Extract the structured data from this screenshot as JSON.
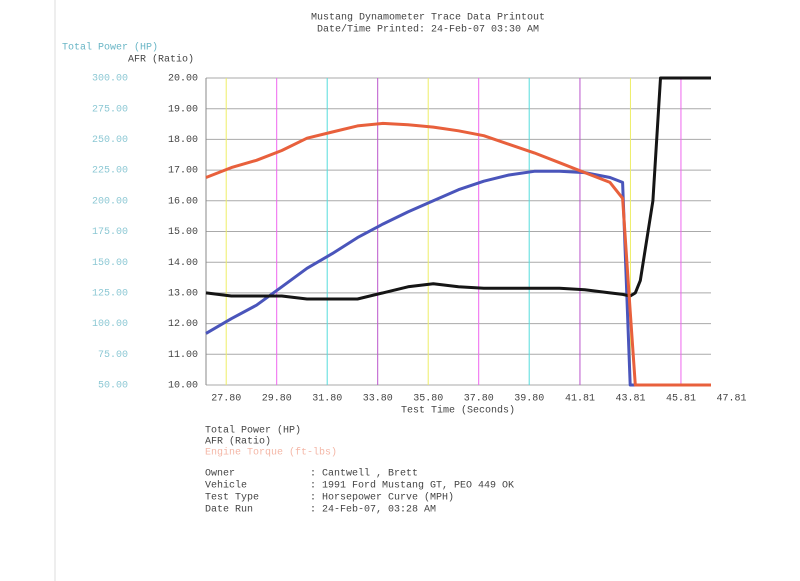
{
  "chart_data": {
    "type": "line",
    "title": "Mustang Dynamometer Trace Data Printout",
    "subtitle": "Date/Time Printed: 24-Feb-07 03:30 AM",
    "y_label": "Total Power (HP)",
    "y2_label": "AFR (Ratio)",
    "x_label": "Test Time (Seconds)",
    "x": [
      27,
      28,
      29,
      30,
      31,
      32,
      33,
      34,
      35,
      36,
      37,
      38,
      39,
      40,
      41,
      42,
      43,
      43.5,
      43.8,
      44,
      44.2,
      44.7,
      45,
      46,
      47
    ],
    "series": [
      {
        "name": "Total Power (HP)",
        "color": "#4a55bb",
        "values": [
          92,
          104,
          115,
          130,
          145,
          157,
          170,
          181,
          191,
          200,
          209,
          216,
          221,
          224,
          224,
          223,
          219,
          215,
          50,
          50,
          50,
          50,
          50,
          50,
          50
        ]
      },
      {
        "name": "AFR (Ratio)",
        "color": "#151515",
        "axis": "y2",
        "values": [
          13.0,
          12.9,
          12.9,
          12.9,
          12.8,
          12.8,
          12.8,
          13.0,
          13.2,
          13.3,
          13.2,
          13.15,
          13.15,
          13.15,
          13.15,
          13.1,
          13.0,
          12.95,
          12.9,
          13.0,
          13.4,
          16.0,
          20.0,
          20.0,
          20.0
        ]
      },
      {
        "name": "Engine Torque (ft-lbs)",
        "color": "#e8603c",
        "values": [
          219,
          227,
          233,
          241,
          251,
          256,
          261,
          263,
          262,
          260,
          257,
          253,
          246,
          239,
          231,
          223,
          215,
          202,
          110,
          50,
          50,
          50,
          50,
          50,
          50
        ]
      }
    ],
    "xlim": [
      27,
      47
    ],
    "xticks": [
      {
        "value": 27.8,
        "label": "27.80"
      },
      {
        "value": 29.8,
        "label": "29.80"
      },
      {
        "value": 31.8,
        "label": "31.80"
      },
      {
        "value": 33.8,
        "label": "33.80"
      },
      {
        "value": 35.8,
        "label": "35.80"
      },
      {
        "value": 37.8,
        "label": "37.80"
      },
      {
        "value": 39.8,
        "label": "39.80"
      },
      {
        "value": 41.81,
        "label": "41.81"
      },
      {
        "value": 43.81,
        "label": "43.81"
      },
      {
        "value": 45.81,
        "label": "45.81"
      },
      {
        "value": 47.81,
        "label": "47.81"
      }
    ],
    "ylim": [
      50,
      300
    ],
    "yticks": [
      {
        "value": 50,
        "label": "50.00"
      },
      {
        "value": 75,
        "label": "75.00"
      },
      {
        "value": 100,
        "label": "100.00"
      },
      {
        "value": 125,
        "label": "125.00"
      },
      {
        "value": 150,
        "label": "150.00"
      },
      {
        "value": 175,
        "label": "175.00"
      },
      {
        "value": 200,
        "label": "200.00"
      },
      {
        "value": 225,
        "label": "225.00"
      },
      {
        "value": 250,
        "label": "250.00"
      },
      {
        "value": 275,
        "label": "275.00"
      },
      {
        "value": 300,
        "label": "300.00"
      }
    ],
    "y2lim": [
      10,
      20
    ],
    "y2ticks": [
      {
        "value": 10,
        "label": "10.00"
      },
      {
        "value": 11,
        "label": "11.00"
      },
      {
        "value": 12,
        "label": "12.00"
      },
      {
        "value": 13,
        "label": "13.00"
      },
      {
        "value": 14,
        "label": "14.00"
      },
      {
        "value": 15,
        "label": "15.00"
      },
      {
        "value": 16,
        "label": "16.00"
      },
      {
        "value": 17,
        "label": "17.00"
      },
      {
        "value": 18,
        "label": "18.00"
      },
      {
        "value": 19,
        "label": "19.00"
      },
      {
        "value": 20,
        "label": "20.00"
      }
    ],
    "grid": true,
    "vgrid_colors": [
      "#eeee66",
      "#ee66ee",
      "#55dddd",
      "#bb55cc"
    ]
  },
  "info": {
    "rows": [
      {
        "label": "Owner",
        "value": "Cantwell , Brett"
      },
      {
        "label": "Vehicle",
        "value": "1991 Ford Mustang GT, PEO 449 OK"
      },
      {
        "label": "Test Type",
        "value": "Horsepower Curve (MPH)"
      },
      {
        "label": "Date Run",
        "value": "24-Feb-07, 03:28 AM"
      }
    ],
    "separator": ":"
  }
}
